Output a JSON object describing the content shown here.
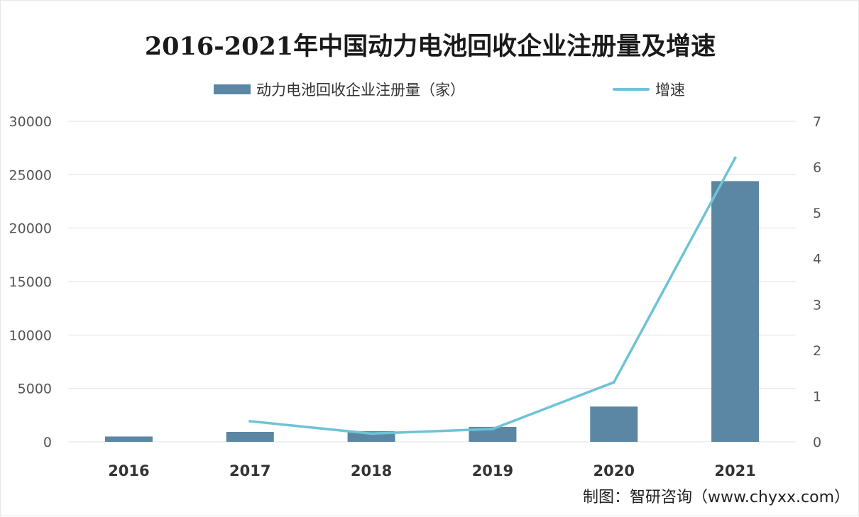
{
  "chart_data": {
    "type": "bar",
    "title": "2016-2021年中国动力电池回收企业注册量及增速",
    "categories": [
      "2016",
      "2017",
      "2018",
      "2019",
      "2020",
      "2021"
    ],
    "series": [
      {
        "name": "动力电池回收企业注册量（家）",
        "type": "bar",
        "axis": "left",
        "values": [
          500,
          930,
          1000,
          1400,
          3300,
          24400
        ]
      },
      {
        "name": "增速",
        "type": "line",
        "axis": "right",
        "values": [
          null,
          0.45,
          0.18,
          0.28,
          1.3,
          6.2
        ]
      }
    ],
    "y_left": {
      "min": 0,
      "max": 30000,
      "ticks": [
        0,
        5000,
        10000,
        15000,
        20000,
        25000,
        30000
      ]
    },
    "y_right": {
      "min": 0,
      "max": 7,
      "ticks": [
        0,
        1,
        2,
        3,
        4,
        5,
        6,
        7
      ]
    },
    "grid": true,
    "legend_position": "top",
    "colors": {
      "bar": "#5b87a4",
      "line": "#6ec3d6",
      "grid": "#dde3ea"
    }
  },
  "source": "制图：智研咨询（www.chyxx.com）"
}
